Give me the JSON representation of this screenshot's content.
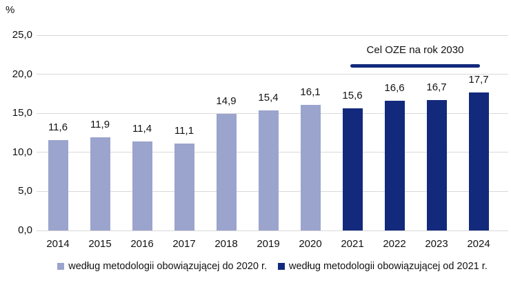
{
  "chart_data": {
    "type": "bar",
    "title": "",
    "xlabel": "",
    "ylabel": "%",
    "categories": [
      "2014",
      "2015",
      "2016",
      "2017",
      "2018",
      "2019",
      "2020",
      "2021",
      "2022",
      "2023",
      "2024"
    ],
    "series": [
      {
        "name": "według metodologii obowiązującej do 2020 r.",
        "color": "#9BA4CC",
        "values": [
          11.6,
          11.9,
          11.4,
          11.1,
          14.9,
          15.4,
          16.1,
          null,
          null,
          null,
          null
        ]
      },
      {
        "name": "według metodologii obowiązującej od 2021 r.",
        "color": "#12297C",
        "values": [
          null,
          null,
          null,
          null,
          null,
          null,
          null,
          15.6,
          16.6,
          16.7,
          17.7
        ]
      }
    ],
    "ylim": [
      0,
      25
    ],
    "yticks": [
      0,
      5,
      10,
      15,
      20,
      25
    ],
    "ytick_labels": [
      "0,0",
      "5,0",
      "10,0",
      "15,0",
      "20,0",
      "25,0"
    ],
    "grid": true,
    "legend_position": "bottom",
    "decimal_separator": ",",
    "annotation": {
      "label": "Cel OZE na rok 2030",
      "level_pct": 21,
      "span_from": "2021",
      "span_to": "2024",
      "color": "#12297C"
    },
    "colors": {
      "gridline": "#d9d9d9",
      "text": "#111111"
    }
  }
}
